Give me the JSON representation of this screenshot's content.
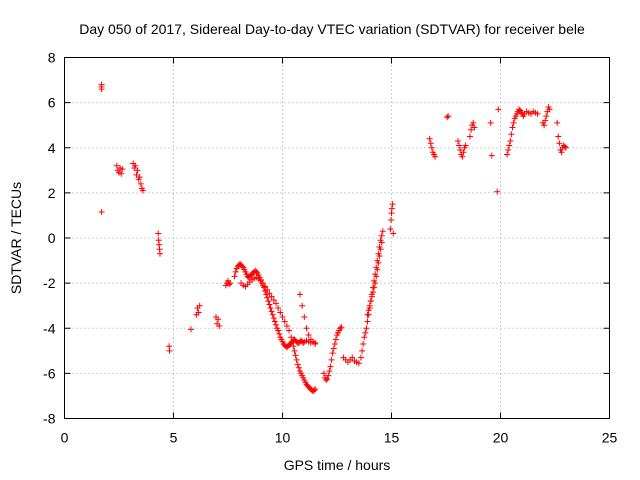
{
  "chart_data": {
    "type": "scatter",
    "title": "Day 050 of 2017, Sidereal Day-to-day VTEC variation (SDTVAR) for receiver bele",
    "xlabel": "GPS time / hours",
    "ylabel": "SDTVAR / TECUs",
    "xlim": [
      0,
      25
    ],
    "ylim": [
      -8,
      8
    ],
    "xticks": [
      0,
      5,
      10,
      15,
      20,
      25
    ],
    "yticks": [
      -8,
      -6,
      -4,
      -2,
      0,
      2,
      4,
      6,
      8
    ],
    "xtick_labels": [
      "0",
      "5",
      "10",
      "15",
      "20",
      "25"
    ],
    "ytick_labels": [
      "-8",
      "-6",
      "-4",
      "-2",
      "0",
      "2",
      "4",
      "6",
      "8"
    ],
    "grid": true,
    "marker": "+",
    "marker_color": "#ff0000",
    "series": [
      {
        "name": "SDTVAR",
        "x": [
          1.7,
          1.7,
          1.7,
          1.7,
          2.4,
          2.45,
          2.5,
          2.55,
          2.6,
          2.65,
          3.15,
          3.2,
          3.25,
          3.3,
          3.35,
          3.4,
          3.45,
          3.5,
          3.55,
          3.6,
          4.3,
          4.32,
          4.34,
          4.36,
          4.38,
          4.8,
          4.82,
          5.8,
          6.05,
          6.1,
          6.15,
          6.2,
          6.95,
          7.0,
          7.05,
          7.1,
          7.4,
          7.45,
          7.5,
          7.55,
          7.6,
          7.8,
          7.85,
          7.9,
          7.95,
          8.0,
          8.05,
          8.1,
          8.15,
          8.2,
          8.25,
          8.3,
          8.35,
          8.4,
          8.45,
          8.5,
          8.55,
          8.6,
          8.65,
          8.7,
          8.75,
          8.8,
          8.85,
          8.9,
          8.95,
          9.0,
          9.05,
          9.1,
          9.15,
          9.2,
          9.25,
          9.3,
          9.35,
          9.4,
          9.45,
          9.5,
          9.55,
          9.6,
          9.65,
          9.7,
          9.75,
          9.8,
          9.85,
          9.9,
          9.95,
          10.0,
          10.05,
          10.1,
          10.15,
          10.2,
          10.25,
          10.3,
          10.35,
          10.4,
          10.45,
          10.5,
          10.55,
          10.6,
          10.65,
          10.7,
          10.75,
          10.8,
          10.85,
          10.9,
          10.95,
          11.0,
          11.1,
          11.2,
          11.3,
          11.4,
          11.5,
          8.1,
          8.2,
          8.3,
          8.4,
          8.5,
          8.6,
          8.7,
          8.8,
          8.9,
          9.0,
          9.1,
          9.2,
          9.3,
          9.4,
          9.5,
          9.6,
          9.7,
          9.8,
          9.9,
          10.0,
          10.1,
          10.2,
          10.3,
          10.4,
          10.45,
          10.5,
          10.55,
          10.6,
          10.65,
          10.7,
          10.75,
          10.8,
          10.85,
          10.9,
          10.95,
          11.0,
          11.05,
          11.1,
          11.15,
          11.2,
          11.25,
          11.3,
          11.35,
          11.4,
          11.45,
          11.5,
          10.8,
          10.9,
          11.0,
          11.1,
          11.2,
          11.3,
          11.4,
          11.5,
          11.9,
          11.95,
          12.0,
          12.05,
          12.1,
          12.15,
          12.2,
          12.25,
          12.3,
          12.35,
          12.4,
          12.45,
          12.5,
          12.55,
          12.6,
          12.65,
          12.7,
          12.8,
          12.9,
          13.0,
          13.1,
          13.2,
          13.3,
          13.4,
          13.5,
          13.6,
          13.65,
          13.7,
          13.75,
          13.8,
          13.85,
          13.9,
          13.95,
          14.0,
          14.05,
          14.1,
          14.15,
          14.2,
          14.25,
          14.3,
          14.35,
          14.4,
          14.45,
          14.5,
          14.55,
          14.6,
          13.9,
          13.95,
          14.0,
          14.05,
          14.1,
          14.15,
          14.2,
          14.25,
          14.3,
          14.35,
          14.4,
          14.45,
          14.5,
          14.55,
          14.95,
          14.98,
          15.0,
          15.02,
          15.05,
          15.08,
          16.75,
          16.8,
          16.85,
          16.9,
          16.95,
          17.0,
          17.55,
          17.6,
          18.05,
          18.1,
          18.15,
          18.2,
          18.25,
          18.3,
          18.35,
          18.4,
          18.6,
          18.65,
          18.7,
          18.75,
          18.8,
          19.55,
          19.6,
          19.85,
          19.9,
          20.3,
          20.35,
          20.4,
          20.45,
          20.5,
          20.55,
          20.6,
          20.65,
          20.7,
          20.75,
          20.8,
          20.85,
          20.9,
          20.95,
          21.0,
          21.05,
          21.1,
          21.2,
          21.3,
          21.4,
          21.5,
          21.6,
          21.7,
          21.95,
          22.0,
          22.05,
          22.1,
          22.15,
          22.2,
          22.25,
          22.6,
          22.65,
          22.7,
          22.75,
          22.8,
          22.85,
          22.9,
          22.95,
          23.0
        ],
        "y": [
          6.8,
          6.6,
          6.7,
          1.15,
          3.2,
          3.0,
          2.9,
          3.1,
          2.85,
          3.05,
          3.3,
          3.1,
          3.2,
          2.8,
          3.0,
          2.6,
          2.7,
          2.4,
          2.2,
          2.1,
          0.2,
          -0.1,
          -0.3,
          -0.5,
          -0.7,
          -4.8,
          -5.0,
          -4.05,
          -3.4,
          -3.1,
          -3.3,
          -3.0,
          -3.5,
          -3.8,
          -3.6,
          -3.9,
          -2.1,
          -2.0,
          -1.9,
          -2.05,
          -2.0,
          -1.7,
          -1.5,
          -1.35,
          -1.25,
          -1.2,
          -1.15,
          -1.2,
          -1.25,
          -1.3,
          -1.4,
          -1.5,
          -1.6,
          -1.7,
          -1.75,
          -1.7,
          -1.65,
          -1.6,
          -1.55,
          -1.5,
          -1.45,
          -1.5,
          -1.55,
          -1.65,
          -1.75,
          -1.85,
          -2.0,
          -2.1,
          -2.2,
          -2.35,
          -2.5,
          -2.65,
          -2.8,
          -2.95,
          -3.1,
          -3.25,
          -3.4,
          -3.55,
          -3.7,
          -3.85,
          -4.0,
          -4.1,
          -4.25,
          -4.4,
          -4.5,
          -4.6,
          -4.7,
          -4.75,
          -4.8,
          -4.85,
          -4.8,
          -4.75,
          -4.7,
          -4.65,
          -4.6,
          -4.55,
          -4.5,
          -4.55,
          -4.6,
          -4.65,
          -4.65,
          -4.6,
          -4.55,
          -4.6,
          -4.65,
          -4.6,
          -4.55,
          -4.6,
          -4.65,
          -4.6,
          -4.65,
          -2.0,
          -2.1,
          -2.15,
          -2.05,
          -1.95,
          -1.85,
          -1.8,
          -1.75,
          -1.8,
          -1.9,
          -2.0,
          -2.15,
          -2.3,
          -2.45,
          -2.6,
          -2.75,
          -2.9,
          -3.1,
          -3.3,
          -3.5,
          -3.7,
          -3.9,
          -4.1,
          -4.4,
          -4.6,
          -4.8,
          -5.0,
          -5.2,
          -5.4,
          -5.6,
          -5.75,
          -5.9,
          -6.0,
          -6.1,
          -6.2,
          -6.3,
          -6.4,
          -6.5,
          -6.55,
          -6.6,
          -6.65,
          -6.7,
          -6.75,
          -6.8,
          -6.75,
          -6.7,
          -2.5,
          -3.0,
          -3.5,
          -4.0,
          -4.3,
          -4.5,
          -4.6,
          -4.7,
          -6.0,
          -6.2,
          -6.3,
          -6.25,
          -6.1,
          -5.9,
          -5.7,
          -5.4,
          -5.1,
          -4.9,
          -4.7,
          -4.5,
          -4.3,
          -4.2,
          -4.1,
          -4.0,
          -3.95,
          -5.3,
          -5.4,
          -5.5,
          -5.4,
          -5.3,
          -5.45,
          -5.5,
          -5.55,
          -5.3,
          -5.0,
          -4.7,
          -4.4,
          -4.2,
          -4.0,
          -3.7,
          -3.4,
          -3.1,
          -2.8,
          -2.5,
          -2.2,
          -1.9,
          -1.6,
          -1.3,
          -1.0,
          -0.7,
          -0.4,
          -0.1,
          0.1,
          0.3,
          -3.4,
          -3.2,
          -3.0,
          -2.8,
          -2.6,
          -2.4,
          -2.2,
          -2.0,
          -1.7,
          -1.4,
          -1.1,
          -0.8,
          -0.5,
          -0.2,
          0.4,
          0.8,
          1.1,
          1.3,
          1.5,
          0.2,
          4.4,
          4.2,
          4.0,
          3.8,
          3.7,
          3.6,
          5.35,
          5.4,
          4.3,
          4.1,
          3.9,
          3.7,
          3.6,
          3.8,
          4.0,
          4.1,
          4.5,
          4.8,
          5.0,
          5.1,
          4.9,
          5.1,
          3.65,
          2.05,
          5.7,
          3.7,
          3.9,
          4.1,
          4.3,
          4.6,
          4.9,
          5.1,
          5.3,
          5.4,
          5.5,
          5.6,
          5.7,
          5.65,
          5.55,
          5.5,
          5.4,
          5.5,
          5.6,
          5.55,
          5.5,
          5.6,
          5.55,
          5.5,
          5.1,
          5.0,
          5.2,
          5.4,
          5.6,
          5.8,
          5.7,
          5.1,
          4.5,
          4.2,
          3.9,
          3.8,
          4.0,
          4.1,
          4.05,
          4.0
        ]
      }
    ]
  }
}
